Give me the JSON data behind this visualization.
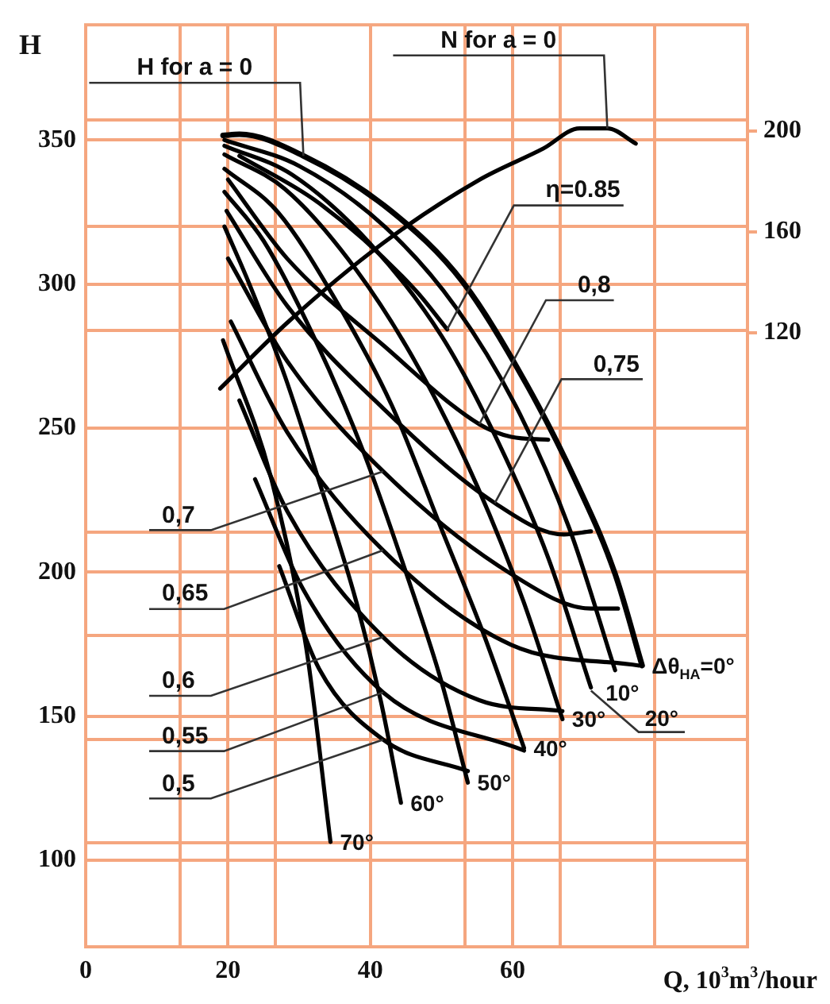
{
  "chart_data": {
    "type": "line",
    "xlabel": "Q, 10$^{3}$m$^{3}$/hour",
    "ylabel": "H",
    "xlim": [
      0,
      93
    ],
    "ylim": [
      70,
      390
    ],
    "y2lim": [
      -123,
      242
    ],
    "xticks": [
      0,
      {
        "value": 13.3,
        "label": null
      },
      20,
      {
        "value": 26.7,
        "label": null
      },
      40,
      {
        "value": 53.3,
        "label": null
      },
      60,
      {
        "value": 66.7,
        "label": null
      },
      {
        "value": 80,
        "label": null
      }
    ],
    "yticks": [
      100,
      {
        "value": 106,
        "label": null
      },
      {
        "value": 142,
        "label": null
      },
      150,
      {
        "value": 178,
        "label": null
      },
      200,
      {
        "value": 214,
        "label": null
      },
      250,
      {
        "value": 284,
        "label": null
      },
      300,
      {
        "value": 320,
        "label": null
      },
      350,
      {
        "value": 357,
        "label": null
      }
    ],
    "y2ticks": [
      120,
      160,
      200
    ],
    "grid": true,
    "legend": false,
    "marker": "none",
    "line_style": "solid",
    "series": [
      {
        "name": "Δθ$_{HA}$=0°",
        "color": "#000000",
        "x": [
          19.3,
          21.6,
          30.6,
          42.9,
          53,
          62,
          68.8,
          74.4,
          78.2
        ],
        "values": [
          351.6,
          352,
          344.5,
          325.4,
          300.7,
          265,
          232,
          199.4,
          167.6
        ]
      },
      {
        "name": "10°",
        "color": "#000000",
        "x": [
          19.5,
          30,
          42,
          52,
          61,
          68,
          74.4
        ],
        "values": [
          350,
          341,
          320,
          292,
          255,
          215,
          166
        ]
      },
      {
        "name": "20°",
        "color": "#000000",
        "x": [
          19.5,
          29,
          40,
          50,
          58,
          65,
          71
        ],
        "values": [
          348,
          338,
          314,
          282,
          245,
          205,
          160
        ]
      },
      {
        "name": "30°",
        "color": "#000000",
        "x": [
          19.5,
          28,
          38,
          47,
          55,
          61.5,
          67
        ],
        "values": [
          345,
          333,
          305,
          270,
          230,
          190,
          149
        ]
      },
      {
        "name": "40°",
        "color": "#000000",
        "x": [
          19.5,
          27,
          35,
          43,
          50,
          56,
          61.6
        ],
        "values": [
          340,
          325,
          295,
          258,
          215,
          178,
          139
        ]
      },
      {
        "name": "50°",
        "color": "#000000",
        "x": [
          19.5,
          25,
          32,
          39,
          45,
          50,
          53.7
        ],
        "values": [
          332,
          315,
          282,
          242,
          200,
          162,
          127
        ]
      },
      {
        "name": "60°",
        "color": "#000000",
        "x": [
          19.5,
          23,
          28,
          33,
          38,
          41.5,
          44.3
        ],
        "values": [
          320,
          300,
          268,
          230,
          190,
          155,
          120
        ]
      },
      {
        "name": "70°",
        "color": "#000000",
        "x": [
          19.3,
          26.1,
          31,
          34.4
        ],
        "values": [
          280.5,
          232.3,
          173.7,
          106.4
        ]
      },
      {
        "color": "#000000",
        "x": [
          21.6,
          32.8,
          46.3,
          50.8
        ],
        "values": [
          344.5,
          328.1,
          298,
          284.3
        ]
      },
      {
        "color": "#000000",
        "x": [
          20,
          28.3,
          41.8,
          55.3,
          59.8,
          65
        ],
        "values": [
          336.3,
          308.9,
          278.8,
          251.4,
          247,
          246
        ]
      },
      {
        "color": "#000000",
        "x": [
          19.8,
          28.3,
          41.8,
          57.5,
          67.2,
          71
        ],
        "values": [
          325.4,
          292.5,
          256.9,
          224,
          213.1,
          214.2
        ]
      },
      {
        "color": "#000000",
        "x": [
          20,
          28.3,
          41.8,
          59.8,
          71,
          74.8
        ],
        "values": [
          308.9,
          273.3,
          235,
          199.4,
          187.4,
          187.4
        ]
      },
      {
        "color": "#000000",
        "x": [
          20.4,
          28.3,
          41.8,
          59.8,
          77.8
        ],
        "values": [
          287,
          248.7,
          207.6,
          174.8,
          167.6
        ]
      },
      {
        "color": "#000000",
        "x": [
          21.6,
          28.3,
          41.8,
          55.3,
          67
        ],
        "values": [
          259.6,
          221.3,
          177.5,
          155.6,
          151.8
        ]
      },
      {
        "color": "#000000",
        "x": [
          23.8,
          30.6,
          41.8,
          61.6
        ],
        "values": [
          232.3,
          193.9,
          158.3,
          138.1
        ]
      },
      {
        "color": "#000000",
        "x": [
          27.2,
          32.8,
          41.8,
          53.7
        ],
        "values": [
          202.1,
          166.5,
          141.9,
          131
        ]
      },
      {
        "color": "#000000",
        "axis": "y2",
        "x": [
          18.9,
          28.3,
          41.8,
          55.3,
          64.3,
          69.4,
          73.3,
          77.3
        ],
        "values": [
          98,
          124,
          155.6,
          180.6,
          193,
          201,
          201,
          195
        ]
      }
    ],
    "annotations": [
      {
        "text": "H for a = 0",
        "x": 30.6,
        "y": 344.5
      },
      {
        "text": "N for a = 0",
        "x": 73.3,
        "y": 354
      },
      {
        "text": "η=0.85",
        "x": 50.8,
        "y": 284.3
      },
      {
        "text": "0,8",
        "x": 55.3,
        "y": 251.4
      },
      {
        "text": "0,75",
        "x": 57.5,
        "y": 224
      },
      {
        "text": "0,7",
        "x": 41.8,
        "y": 235
      },
      {
        "text": "0,65",
        "x": 41.8,
        "y": 207.6
      },
      {
        "text": "0,6",
        "x": 41.8,
        "y": 177.5
      },
      {
        "text": "0,55",
        "x": 41.8,
        "y": 158.3
      },
      {
        "text": "0,5",
        "x": 41.8,
        "y": 141.9
      }
    ]
  }
}
